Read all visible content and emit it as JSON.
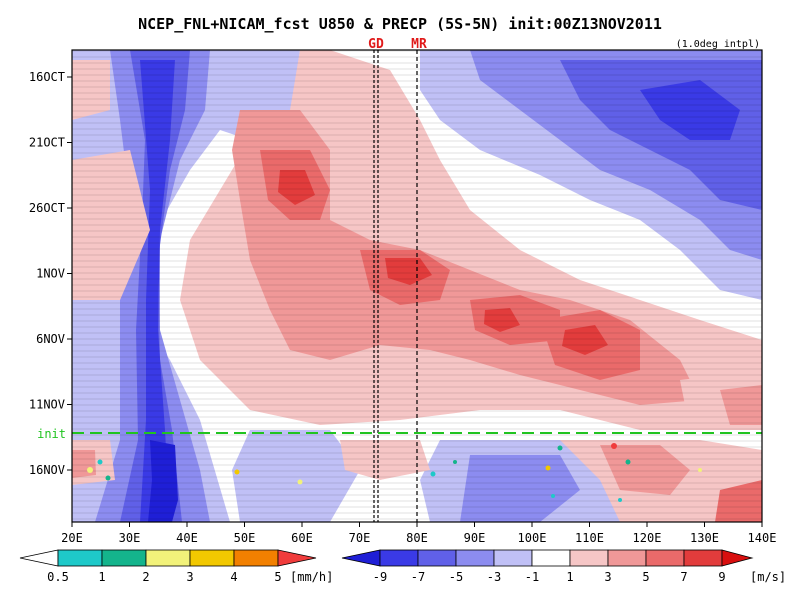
{
  "chart_data": {
    "type": "heatmap",
    "title": "NCEP_FNL+NICAM_fcst U850 & PRECP (5S-5N) init:00Z13NOV2011",
    "note": "(1.0deg intpl)",
    "x_axis": {
      "ticks": [
        "20E",
        "30E",
        "40E",
        "50E",
        "60E",
        "70E",
        "80E",
        "90E",
        "100E",
        "110E",
        "120E",
        "130E",
        "140E"
      ],
      "range_deg_east": [
        20,
        140
      ]
    },
    "y_axis": {
      "ticks": [
        "16OCT",
        "21OCT",
        "26OCT",
        "1NOV",
        "6NOV",
        "11NOV",
        "16NOV"
      ],
      "direction": "time increases downward"
    },
    "markers": [
      {
        "label": "GD",
        "lon": 73,
        "color": "#e01a1a"
      },
      {
        "label": "MR",
        "lon": 80,
        "color": "#e01a1a"
      }
    ],
    "init_line": {
      "label": "init",
      "date": "13NOV2011",
      "color": "#21c421"
    },
    "wind_colorbar": {
      "unit": "[m/s]",
      "tick_labels": [
        "-9",
        "-7",
        "-5",
        "-3",
        "-1",
        "1",
        "3",
        "5",
        "7",
        "9"
      ],
      "colors": [
        "#1f1fd6",
        "#3a3ae6",
        "#6060e8",
        "#8c8cf0",
        "#c0c0f6",
        "#ffffff",
        "#f6c6c6",
        "#f09898",
        "#ea6a6a",
        "#e23c3c",
        "#d80f0f"
      ]
    },
    "precip_colorbar": {
      "unit": "[mm/h]",
      "tick_labels": [
        "0.5",
        "1",
        "2",
        "3",
        "4",
        "5"
      ],
      "colors": [
        "#ffffff",
        "#1ec9c9",
        "#14b48c",
        "#f2f27a",
        "#f2c800",
        "#f28000",
        "#f03c3c"
      ]
    }
  }
}
